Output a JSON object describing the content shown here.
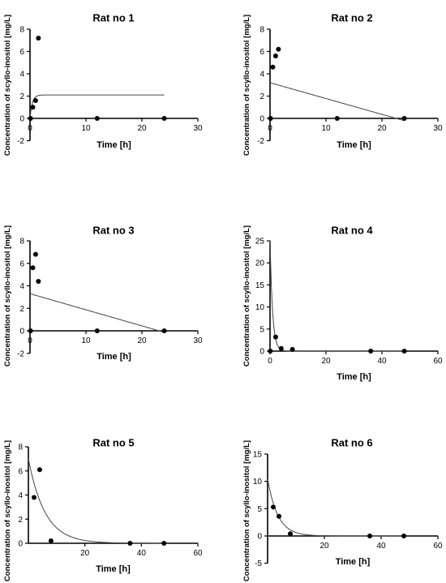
{
  "chart_data": [
    {
      "type": "scatter",
      "title": "Rat no 1",
      "xlabel": "Time [h]",
      "ylabel": "Concentration of scyllo-inositol [mg/L]",
      "xlim": [
        0,
        30
      ],
      "ylim": [
        -2,
        8
      ],
      "xticks": [
        0,
        10,
        20,
        30
      ],
      "yticks": [
        -2,
        0,
        2,
        4,
        6,
        8
      ],
      "points": [
        [
          0.1,
          0
        ],
        [
          0.5,
          1.0
        ],
        [
          1.0,
          1.6
        ],
        [
          1.5,
          7.2
        ],
        [
          12,
          0
        ],
        [
          24,
          0
        ]
      ],
      "fit": {
        "model": "rise-plateau",
        "x_start": 0,
        "x_end": 24,
        "plateau": 2.1,
        "k": 2.5
      }
    },
    {
      "type": "scatter",
      "title": "Rat  no 2",
      "xlabel": "Time [h]",
      "ylabel": "Concentration of scyllo-inositol [mg/L]",
      "xlim": [
        0,
        30
      ],
      "ylim": [
        -2,
        8
      ],
      "xticks": [
        0,
        10,
        20,
        30
      ],
      "yticks": [
        -2,
        0,
        2,
        4,
        6,
        8
      ],
      "points": [
        [
          0.1,
          0
        ],
        [
          0.5,
          4.6
        ],
        [
          1.0,
          5.6
        ],
        [
          1.5,
          6.2
        ],
        [
          12,
          0
        ],
        [
          24,
          0
        ]
      ],
      "fit": {
        "model": "linear",
        "x_start": 0,
        "x_end": 24,
        "y0": 3.2,
        "slope": -0.142
      }
    },
    {
      "type": "scatter",
      "title": "Rat no 3",
      "xlabel": "Time [h]",
      "ylabel": "Concentration of scyllo-inositol [mg/L]",
      "xlim": [
        0,
        30
      ],
      "ylim": [
        -2,
        8
      ],
      "xticks": [
        0,
        10,
        20,
        30
      ],
      "yticks": [
        -2,
        0,
        2,
        4,
        6,
        8
      ],
      "points": [
        [
          0.1,
          0
        ],
        [
          0.5,
          5.6
        ],
        [
          1.0,
          6.8
        ],
        [
          1.5,
          4.4
        ],
        [
          12,
          0
        ],
        [
          24,
          0
        ]
      ],
      "fit": {
        "model": "linear",
        "x_start": 0,
        "x_end": 24,
        "y0": 3.3,
        "slope": -0.143
      }
    },
    {
      "type": "scatter",
      "title": "Rat no 4",
      "xlabel": "Time [h]",
      "ylabel": "Concentration of scyllo-inositol [mg/L]",
      "xlim": [
        0,
        60
      ],
      "ylim": [
        0,
        25
      ],
      "xticks": [
        0,
        20,
        40,
        60
      ],
      "yticks": [
        0,
        5,
        10,
        15,
        20,
        25
      ],
      "points": [
        [
          0.1,
          0
        ],
        [
          2,
          3.2
        ],
        [
          4,
          0.6
        ],
        [
          8,
          0.4
        ],
        [
          36,
          0
        ],
        [
          48,
          0
        ]
      ],
      "fit": {
        "model": "exp-decay",
        "x_start": 0,
        "x_end": 48,
        "y0": 25,
        "k": 1.1
      }
    },
    {
      "type": "scatter",
      "title": "Rat no 5",
      "xlabel": "Time [h]",
      "ylabel": "Concentration of scyllo-inositol [mg/L]",
      "xlim": [
        0,
        60
      ],
      "ylim": [
        0,
        8
      ],
      "xticks": [
        20,
        40,
        60
      ],
      "yticks": [
        0,
        2,
        4,
        6,
        8
      ],
      "points": [
        [
          2,
          3.8
        ],
        [
          4,
          6.1
        ],
        [
          8,
          0.2
        ],
        [
          36,
          0
        ],
        [
          48,
          0
        ]
      ],
      "fit": {
        "model": "exp-decay",
        "x_start": 0,
        "x_end": 48,
        "y0": 7.0,
        "k": 0.17
      }
    },
    {
      "type": "scatter",
      "title": "Rat no 6",
      "xlabel": "Time [h]",
      "ylabel": "Concentration of scyllo-inositol [mg/L]",
      "xlim": [
        0,
        60
      ],
      "ylim": [
        -5,
        15
      ],
      "xticks": [
        20,
        40,
        60
      ],
      "yticks": [
        -5,
        0,
        5,
        10,
        15
      ],
      "points": [
        [
          2,
          5.3
        ],
        [
          4,
          3.6
        ],
        [
          8,
          0.4
        ],
        [
          36,
          0
        ],
        [
          48,
          0
        ]
      ],
      "fit": {
        "model": "exp-decay",
        "x_start": 0,
        "x_end": 48,
        "y0": 10.5,
        "k": 0.28
      }
    }
  ]
}
